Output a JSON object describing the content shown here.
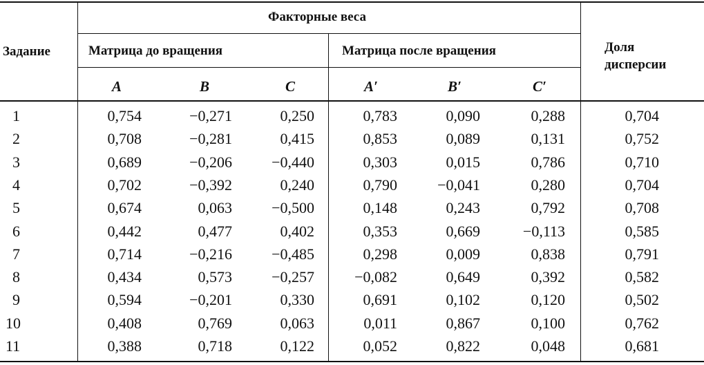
{
  "header": {
    "task": "Задание",
    "factor_loadings": "Факторные веса",
    "before_rotation": "Матрица до вращения",
    "after_rotation": "Матрица после вращения",
    "variance_line1": "Доля",
    "variance_line2": "дисперсии",
    "factors": [
      "A",
      "B",
      "C",
      "A′",
      "B′",
      "C′"
    ]
  },
  "rows": [
    {
      "n": "1",
      "v": [
        "0,754",
        "−0,271",
        "0,250",
        "0,783",
        "0,090",
        "0,288",
        "0,704"
      ]
    },
    {
      "n": "2",
      "v": [
        "0,708",
        "−0,281",
        "0,415",
        "0,853",
        "0,089",
        "0,131",
        "0,752"
      ]
    },
    {
      "n": "3",
      "v": [
        "0,689",
        "−0,206",
        "−0,440",
        "0,303",
        "0,015",
        "0,786",
        "0,710"
      ]
    },
    {
      "n": "4",
      "v": [
        "0,702",
        "−0,392",
        "0,240",
        "0,790",
        "−0,041",
        "0,280",
        "0,704"
      ]
    },
    {
      "n": "5",
      "v": [
        "0,674",
        "0,063",
        "−0,500",
        "0,148",
        "0,243",
        "0,792",
        "0,708"
      ]
    },
    {
      "n": "6",
      "v": [
        "0,442",
        "0,477",
        "0,402",
        "0,353",
        "0,669",
        "−0,113",
        "0,585"
      ]
    },
    {
      "n": "7",
      "v": [
        "0,714",
        "−0,216",
        "−0,485",
        "0,298",
        "0,009",
        "0,838",
        "0,791"
      ]
    },
    {
      "n": "8",
      "v": [
        "0,434",
        "0,573",
        "−0,257",
        "−0,082",
        "0,649",
        "0,392",
        "0,582"
      ]
    },
    {
      "n": "9",
      "v": [
        "0,594",
        "−0,201",
        "0,330",
        "0,691",
        "0,102",
        "0,120",
        "0,502"
      ]
    },
    {
      "n": "10",
      "v": [
        "0,408",
        "0,769",
        "0,063",
        "0,011",
        "0,867",
        "0,100",
        "0,762"
      ]
    },
    {
      "n": "11",
      "v": [
        "0,388",
        "0,718",
        "0,122",
        "0,052",
        "0,822",
        "0,048",
        "0,681"
      ]
    }
  ]
}
